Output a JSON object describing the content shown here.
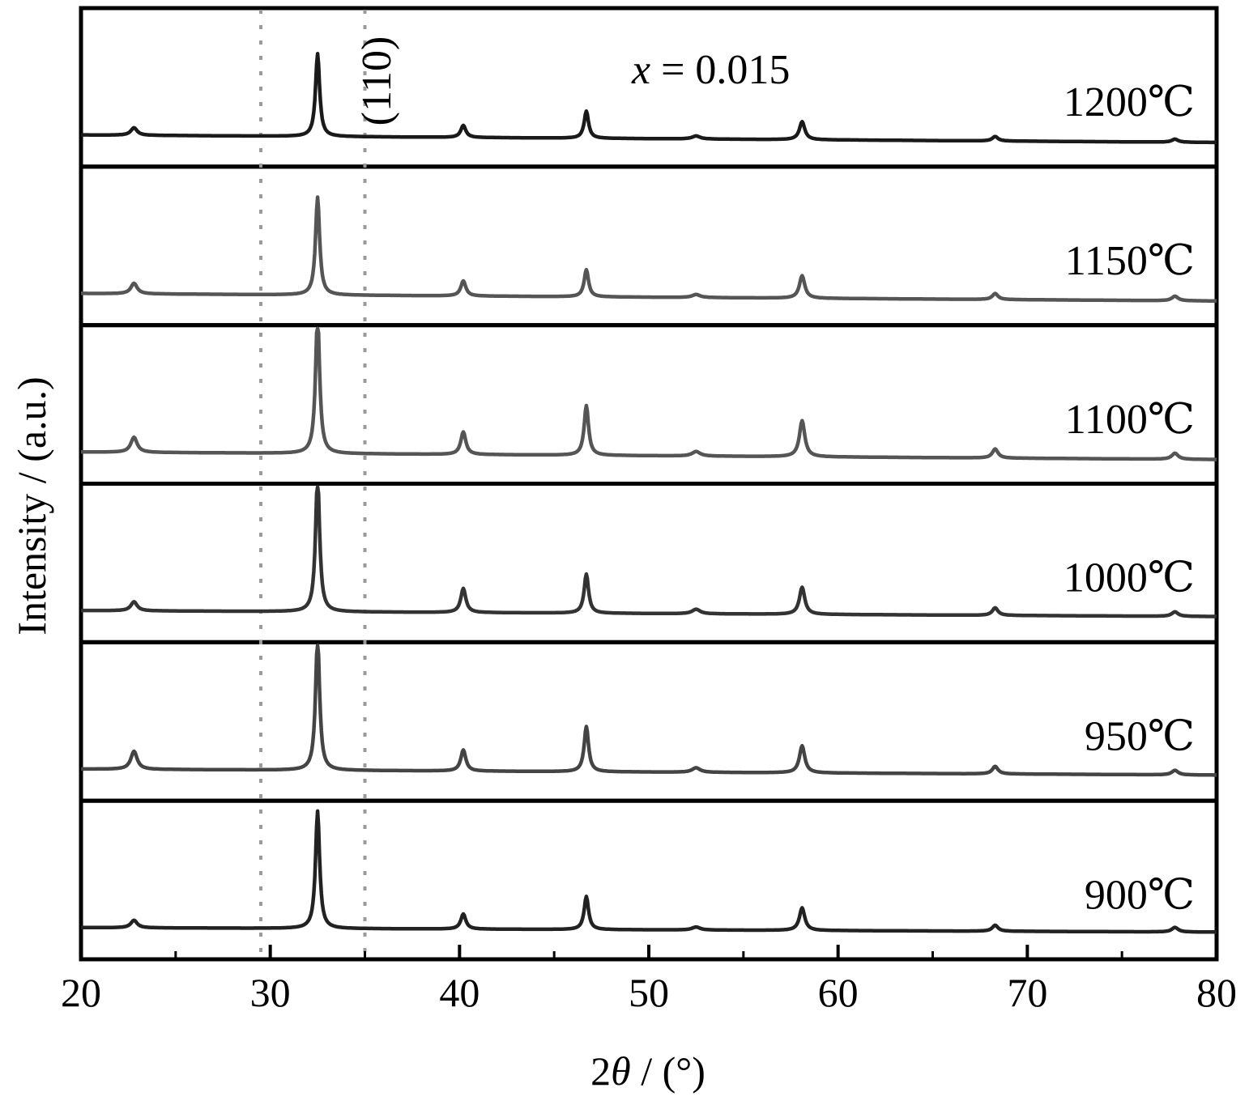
{
  "chart_data": {
    "type": "line",
    "title": "",
    "xlabel_prefix": "2",
    "xlabel_symbol": "θ",
    "xlabel_suffix": " / (°)",
    "ylabel": "Intensity / (a.u.)",
    "xlim": [
      20,
      80
    ],
    "xticks": [
      20,
      30,
      40,
      50,
      60,
      70,
      80
    ],
    "xtick_labels": [
      "20",
      "30",
      "40",
      "50",
      "60",
      "70",
      "80"
    ],
    "stacked_panels": true,
    "grid": false,
    "annotation_var": "x",
    "annotation_value": " = 0.015",
    "peak_label": "(110)",
    "reference_lines_x": [
      29.5,
      35.0
    ],
    "peak_positions": [
      22.8,
      32.5,
      40.2,
      46.7,
      52.5,
      58.1,
      68.3,
      77.8
    ],
    "series": [
      {
        "name": "1200℃",
        "color": "#1a1a1a",
        "peak_heights": [
          0.05,
          0.55,
          0.08,
          0.18,
          0.02,
          0.12,
          0.03,
          0.02
        ],
        "baseline_tilt": 0.05
      },
      {
        "name": "1150℃",
        "color": "#555555",
        "peak_heights": [
          0.07,
          0.65,
          0.1,
          0.18,
          0.02,
          0.15,
          0.04,
          0.03
        ],
        "baseline_tilt": 0.05
      },
      {
        "name": "1100℃",
        "color": "#555555",
        "peak_heights": [
          0.1,
          0.92,
          0.15,
          0.33,
          0.03,
          0.24,
          0.06,
          0.04
        ],
        "baseline_tilt": 0.05
      },
      {
        "name": "1000℃",
        "color": "#333333",
        "peak_heights": [
          0.06,
          0.9,
          0.16,
          0.26,
          0.03,
          0.18,
          0.05,
          0.03
        ],
        "baseline_tilt": 0.04
      },
      {
        "name": "950℃",
        "color": "#444444",
        "peak_heights": [
          0.12,
          0.88,
          0.14,
          0.3,
          0.03,
          0.18,
          0.05,
          0.03
        ],
        "baseline_tilt": 0.04
      },
      {
        "name": "900℃",
        "color": "#222222",
        "peak_heights": [
          0.05,
          0.78,
          0.1,
          0.22,
          0.02,
          0.15,
          0.04,
          0.03
        ],
        "baseline_tilt": 0.03
      }
    ]
  }
}
